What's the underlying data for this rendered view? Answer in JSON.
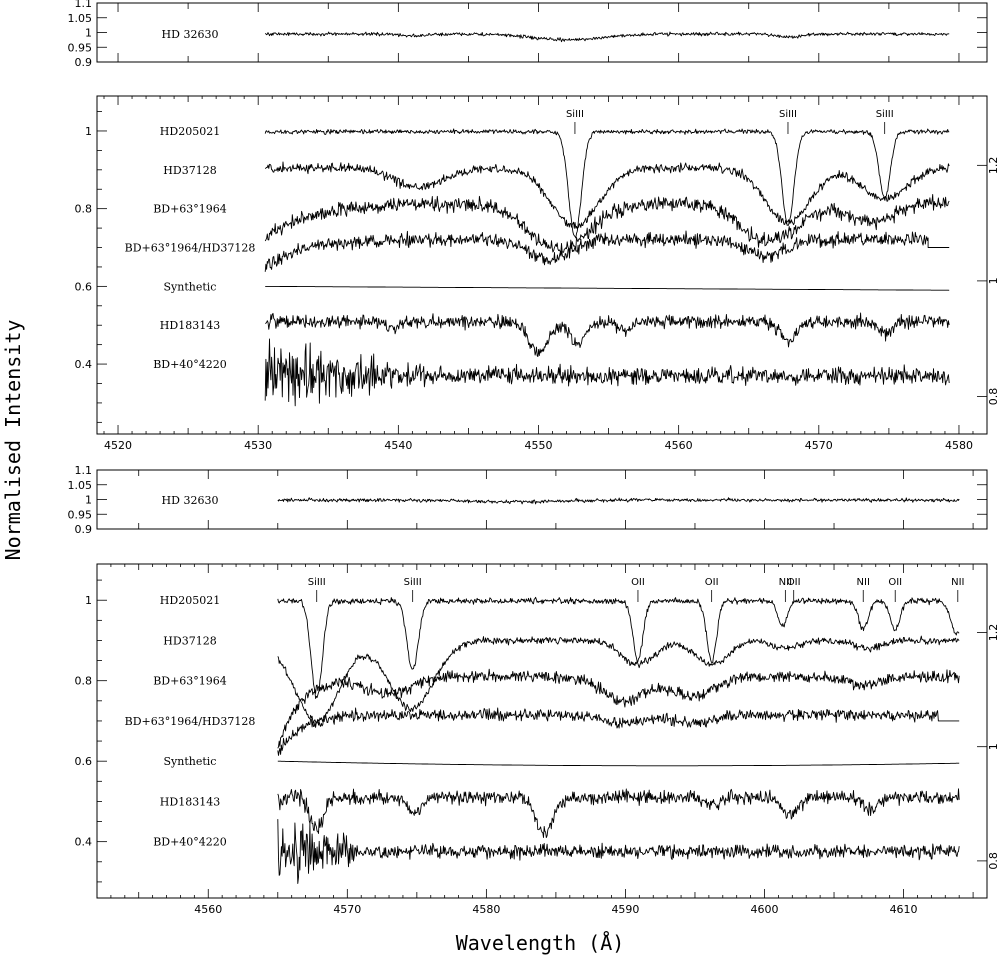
{
  "figure": {
    "xlabel": "Wavelength (Å)",
    "ylabel": "Normalised Intensity"
  },
  "chart_data": [
    {
      "id": "p1",
      "type": "line",
      "xlim": [
        4518.5,
        4582
      ],
      "ylim": [
        0.9,
        1.1
      ],
      "x_ticks": [],
      "y_ticks": [
        0.9,
        0.95,
        1.0,
        1.05,
        1.1
      ],
      "y_tick_labels": [
        "0.9",
        "0.95",
        "1",
        "1.05",
        "1.1"
      ],
      "series": [
        {
          "name": "HD 32630",
          "x_range": [
            4530.5,
            4579.3
          ],
          "base": 0.995,
          "noise": 0.004,
          "dips": [
            {
              "center": 4552,
              "depth": 0.02,
              "width": 2.5
            },
            {
              "center": 4567.8,
              "depth": 0.01,
              "width": 1.0
            },
            {
              "center": 4541.2,
              "depth": 0.006,
              "width": 1.0
            }
          ]
        }
      ]
    },
    {
      "id": "p2",
      "type": "line",
      "xlim": [
        4518.5,
        4582
      ],
      "ylim": [
        0.22,
        1.09
      ],
      "x_ticks": [
        4520,
        4530,
        4540,
        4550,
        4560,
        4570,
        4580
      ],
      "x_tick_labels": [
        "4520",
        "4530",
        "4540",
        "4550",
        "4560",
        "4570",
        "4580"
      ],
      "y_ticks": [
        0.4,
        0.6,
        0.8,
        1.0
      ],
      "y_tick_labels": [
        "0.4",
        "0.6",
        "0.8",
        "1"
      ],
      "right_axis": {
        "y_ticks": [
          0.8,
          1.0,
          1.2
        ],
        "y_tick_labels": [
          "0.8",
          "1",
          "1.2"
        ],
        "ylim": [
          0.735,
          1.32
        ]
      },
      "line_markers": [
        {
          "label": "SiIII",
          "x": 4552.6
        },
        {
          "label": "SiIII",
          "x": 4567.8
        },
        {
          "label": "SiIII",
          "x": 4574.7
        }
      ],
      "series": [
        {
          "name": "HD205021",
          "label_y": 1.0,
          "x_range": [
            4530.5,
            4579.3
          ],
          "base": 0.998,
          "noise": 0.004,
          "dips": [
            {
              "center": 4552.6,
              "depth": 0.27,
              "width": 0.45
            },
            {
              "center": 4567.8,
              "depth": 0.24,
              "width": 0.42
            },
            {
              "center": 4574.7,
              "depth": 0.17,
              "width": 0.4
            }
          ]
        },
        {
          "name": "HD37128",
          "label_y": 0.9,
          "x_range": [
            4530.5,
            4579.3
          ],
          "base": 0.905,
          "noise": 0.008,
          "dips": [
            {
              "center": 4541.5,
              "depth": 0.05,
              "width": 1.8
            },
            {
              "center": 4552.6,
              "depth": 0.15,
              "width": 1.7
            },
            {
              "center": 4567.8,
              "depth": 0.14,
              "width": 1.6
            },
            {
              "center": 4574.7,
              "depth": 0.08,
              "width": 1.6
            }
          ]
        },
        {
          "name": "BD+63°1964",
          "label_y": 0.8,
          "x_range": [
            4530.5,
            4579.3
          ],
          "base": 0.815,
          "noise": 0.013,
          "tilt": [
            -0.09,
            4534,
            3.5
          ],
          "dips": [
            {
              "center": 4551.5,
              "depth": 0.12,
              "width": 2.2
            },
            {
              "center": 4566.5,
              "depth": 0.1,
              "width": 2.0
            },
            {
              "center": 4573.8,
              "depth": 0.05,
              "width": 1.6
            }
          ]
        },
        {
          "name": "BD+63°1964/HD37128",
          "label_y": 0.7,
          "x_range": [
            4530.5,
            4577.8
          ],
          "base": 0.72,
          "noise": 0.012,
          "tilt": [
            -0.07,
            4533,
            2.5
          ],
          "flat_tail": [
            4577.8,
            4579.3,
            0.7
          ],
          "dips": [
            {
              "center": 4550.8,
              "depth": 0.05,
              "width": 1.5
            },
            {
              "center": 4566.2,
              "depth": 0.04,
              "width": 1.4
            }
          ]
        },
        {
          "name": "Synthetic",
          "label_y": 0.6,
          "x_range": [
            4530.5,
            4579.3
          ],
          "base": 0.6,
          "noise": 0.0,
          "slope": [
            0.6,
            0.59
          ],
          "dips": []
        },
        {
          "name": "HD183143",
          "label_y": 0.5,
          "x_range": [
            4530.5,
            4579.3
          ],
          "base": 0.51,
          "noise": 0.012,
          "dips": [
            {
              "center": 4550.0,
              "depth": 0.08,
              "width": 0.7
            },
            {
              "center": 4552.8,
              "depth": 0.06,
              "width": 0.6
            },
            {
              "center": 4567.8,
              "depth": 0.05,
              "width": 0.6
            },
            {
              "center": 4539.5,
              "depth": 0.02,
              "width": 0.4
            },
            {
              "center": 4556.2,
              "depth": 0.02,
              "width": 0.5
            },
            {
              "center": 4574.8,
              "depth": 0.03,
              "width": 0.5
            }
          ]
        },
        {
          "name": "BD+40°4220",
          "label_y": 0.4,
          "x_range": [
            4530.5,
            4579.3
          ],
          "base": 0.37,
          "noise": 0.016,
          "noise_boost": [
            4530.5,
            4542,
            4.5
          ],
          "dips": []
        }
      ]
    },
    {
      "id": "p3",
      "type": "line",
      "xlim": [
        4552,
        4616
      ],
      "ylim": [
        0.9,
        1.1
      ],
      "x_ticks": [],
      "y_ticks": [
        0.9,
        0.95,
        1.0,
        1.05,
        1.1
      ],
      "y_tick_labels": [
        "0.9",
        "0.95",
        "1",
        "1.05",
        "1.1"
      ],
      "series": [
        {
          "name": "HD 32630",
          "x_range": [
            4565,
            4614
          ],
          "base": 0.998,
          "noise": 0.004,
          "dips": [
            {
              "center": 4582,
              "depth": 0.006,
              "width": 3
            }
          ]
        }
      ]
    },
    {
      "id": "p4",
      "type": "line",
      "xlim": [
        4552,
        4616
      ],
      "ylim": [
        0.26,
        1.09
      ],
      "x_ticks": [
        4560,
        4570,
        4580,
        4590,
        4600,
        4610
      ],
      "x_tick_labels": [
        "4560",
        "4570",
        "4580",
        "4590",
        "4600",
        "4610"
      ],
      "y_ticks": [
        0.4,
        0.6,
        0.8,
        1.0
      ],
      "y_tick_labels": [
        "0.4",
        "0.6",
        "0.8",
        "1"
      ],
      "right_axis": {
        "y_ticks": [
          0.8,
          1.0,
          1.2
        ],
        "y_tick_labels": [
          "0.8",
          "1",
          "1.2"
        ],
        "ylim": [
          0.735,
          1.32
        ]
      },
      "line_markers": [
        {
          "label": "SiIII",
          "x": 4567.8
        },
        {
          "label": "SiIII",
          "x": 4574.7
        },
        {
          "label": "OII",
          "x": 4590.9
        },
        {
          "label": "OII",
          "x": 4596.2
        },
        {
          "label": "NII",
          "x": 4601.5
        },
        {
          "label": "OII",
          "x": 4602.1
        },
        {
          "label": "NII",
          "x": 4607.1
        },
        {
          "label": "OII",
          "x": 4609.4
        },
        {
          "label": "NII",
          "x": 4613.9
        }
      ],
      "series": [
        {
          "name": "HD205021",
          "label_y": 1.0,
          "x_range": [
            4565,
            4614
          ],
          "base": 0.998,
          "noise": 0.005,
          "dips": [
            {
              "center": 4567.8,
              "depth": 0.24,
              "width": 0.4
            },
            {
              "center": 4574.7,
              "depth": 0.17,
              "width": 0.4
            },
            {
              "center": 4590.9,
              "depth": 0.15,
              "width": 0.35
            },
            {
              "center": 4596.2,
              "depth": 0.15,
              "width": 0.35
            },
            {
              "center": 4601.3,
              "depth": 0.06,
              "width": 0.35
            },
            {
              "center": 4607.1,
              "depth": 0.07,
              "width": 0.35
            },
            {
              "center": 4609.4,
              "depth": 0.07,
              "width": 0.35
            },
            {
              "center": 4613.8,
              "depth": 0.08,
              "width": 0.4
            }
          ]
        },
        {
          "name": "HD37128",
          "label_y": 0.9,
          "x_range": [
            4565,
            4614
          ],
          "base": 0.9,
          "noise": 0.006,
          "dips": [
            {
              "center": 4567.8,
              "depth": 0.2,
              "width": 1.6
            },
            {
              "center": 4574.6,
              "depth": 0.17,
              "width": 1.6
            },
            {
              "center": 4590.9,
              "depth": 0.06,
              "width": 1.2
            },
            {
              "center": 4596.2,
              "depth": 0.06,
              "width": 1.2
            },
            {
              "center": 4601.5,
              "depth": 0.02,
              "width": 1.0
            },
            {
              "center": 4607.5,
              "depth": 0.02,
              "width": 1.0
            }
          ]
        },
        {
          "name": "BD+63°1964",
          "label_y": 0.8,
          "x_range": [
            4565,
            4614
          ],
          "base": 0.81,
          "noise": 0.01,
          "tilt": [
            -0.18,
            4566,
            1.6
          ],
          "dips": [
            {
              "center": 4589.9,
              "depth": 0.06,
              "width": 1.5
            },
            {
              "center": 4594.8,
              "depth": 0.05,
              "width": 1.5
            },
            {
              "center": 4573,
              "depth": 0.04,
              "width": 1.6
            },
            {
              "center": 4607,
              "depth": 0.02,
              "width": 1.2
            }
          ]
        },
        {
          "name": "BD+63°1964/HD37128",
          "label_y": 0.7,
          "x_range": [
            4565,
            4612.5
          ],
          "base": 0.715,
          "noise": 0.01,
          "tilt": [
            -0.1,
            4566,
            1.6
          ],
          "flat_tail": [
            4612.5,
            4614,
            0.7
          ],
          "dips": [
            {
              "center": 4590,
              "depth": 0.02,
              "width": 1.5
            },
            {
              "center": 4595,
              "depth": 0.02,
              "width": 1.5
            }
          ]
        },
        {
          "name": "Synthetic",
          "label_y": 0.6,
          "x_range": [
            4565,
            4614
          ],
          "base": 0.6,
          "noise": 0.0,
          "slope_curve": [
            0.6,
            0.58,
            0.595
          ],
          "dips": []
        },
        {
          "name": "HD183143",
          "label_y": 0.5,
          "x_range": [
            4565,
            4614
          ],
          "base": 0.51,
          "noise": 0.012,
          "noise_boost": [
            4565,
            4570,
            2.0
          ],
          "dips": [
            {
              "center": 4584.2,
              "depth": 0.09,
              "width": 0.6
            },
            {
              "center": 4567.8,
              "depth": 0.08,
              "width": 0.5
            },
            {
              "center": 4574.8,
              "depth": 0.04,
              "width": 0.5
            },
            {
              "center": 4601.8,
              "depth": 0.04,
              "width": 0.6
            },
            {
              "center": 4607.6,
              "depth": 0.03,
              "width": 0.6
            },
            {
              "center": 4596.2,
              "depth": 0.02,
              "width": 0.5
            }
          ]
        },
        {
          "name": "BD+40°4220",
          "label_y": 0.4,
          "x_range": [
            4565,
            4614
          ],
          "base": 0.375,
          "noise": 0.012,
          "noise_boost": [
            4565,
            4572,
            5.0
          ],
          "dips": []
        }
      ]
    }
  ]
}
